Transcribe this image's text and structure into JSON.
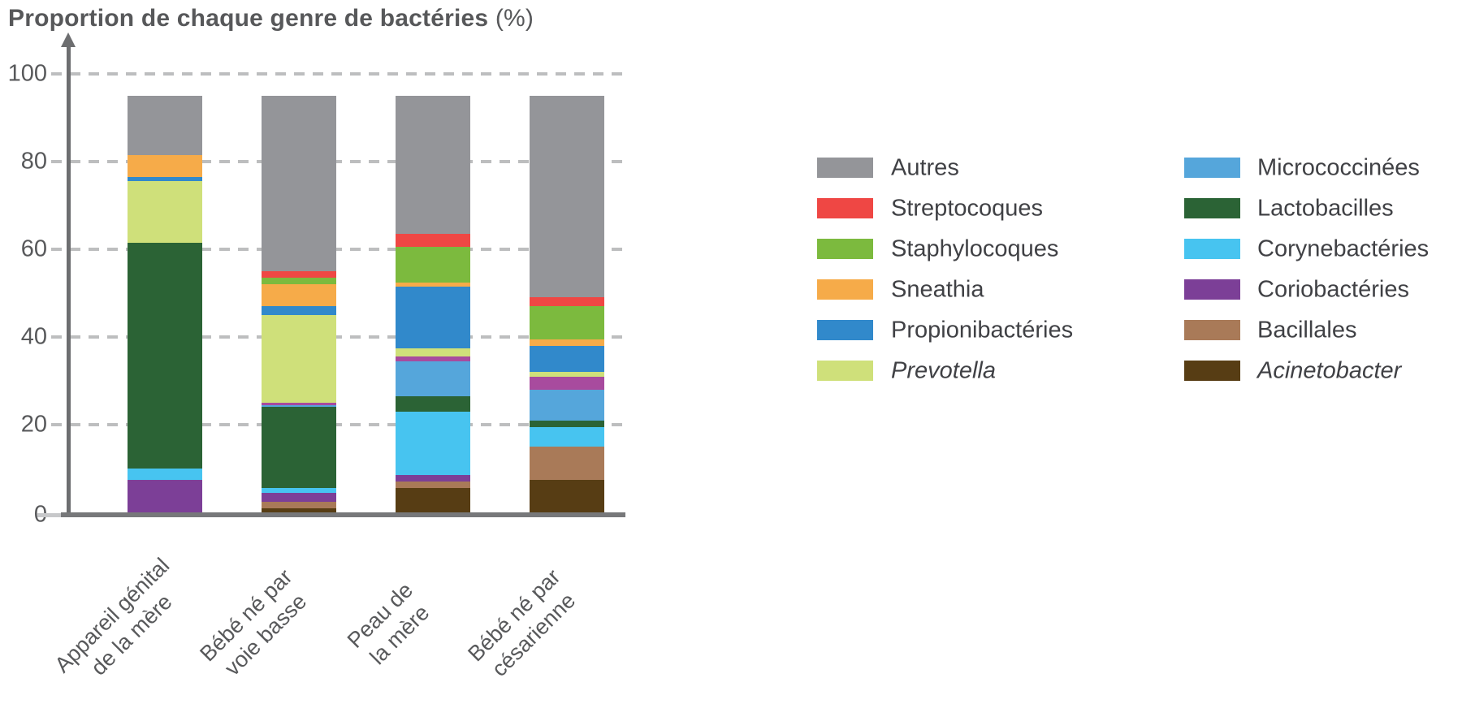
{
  "title": {
    "text": "Proportion de chaque genre de bactéries",
    "suffix": "(%)"
  },
  "chart_data": {
    "type": "stacked-bar",
    "title": "Proportion de chaque genre de bactéries (%)",
    "xlabel": "",
    "ylabel": "Proportion de chaque genre de bactéries (%)",
    "grid": "dashed horizontal lines at 20,40,60,80,100",
    "legend_position": "right, two columns",
    "ylim": [
      0,
      107
    ],
    "y_ticks": [
      "0",
      "20",
      "40",
      "60",
      "80",
      "100"
    ],
    "categories": [
      {
        "lines": [
          "Appareil génital",
          "de la mère"
        ]
      },
      {
        "lines": [
          "Bébé né par",
          "voie basse"
        ]
      },
      {
        "lines": [
          "Peau de",
          "la mère"
        ]
      },
      {
        "lines": [
          "Bébé né par",
          "césarienne"
        ]
      }
    ],
    "stack_order_bottom_to_top": [
      "acinetobacter",
      "bacillales",
      "coriobacteries",
      "corynebacteries",
      "lactobacilles",
      "micrococcinees",
      "non_legende",
      "prevotella",
      "propionibacteries",
      "sneathia",
      "staphylocoques",
      "streptocoques",
      "autres"
    ],
    "series": {
      "autres": {
        "name": "Autres",
        "color": "#949599",
        "italic": false,
        "values": [
          13.5,
          40,
          31.5,
          46
        ]
      },
      "streptocoques": {
        "name": "Streptocoques",
        "color": "#ef4744",
        "italic": false,
        "values": [
          0,
          1.5,
          3,
          2
        ]
      },
      "staphylocoques": {
        "name": "Staphylocoques",
        "color": "#7cba3e",
        "italic": false,
        "values": [
          0,
          1.5,
          8,
          7.5
        ]
      },
      "sneathia": {
        "name": "Sneathia",
        "color": "#f6ab49",
        "italic": false,
        "values": [
          5,
          5,
          1,
          1.5
        ]
      },
      "propionibacteries": {
        "name": "Propionibactéries",
        "color": "#3189cb",
        "italic": false,
        "values": [
          1,
          2,
          14,
          6
        ]
      },
      "prevotella": {
        "name": "Prevotella",
        "color": "#cfe07a",
        "italic": true,
        "values": [
          14,
          20,
          2,
          1
        ]
      },
      "non_legende": {
        "name": "",
        "color": "#a84b9e",
        "italic": false,
        "values": [
          0,
          0.5,
          1,
          3
        ]
      },
      "micrococcinees": {
        "name": "Micrococcinées",
        "color": "#55a6db",
        "italic": false,
        "values": [
          0,
          0.5,
          8,
          7
        ]
      },
      "lactobacilles": {
        "name": "Lactobacilles",
        "color": "#2b6335",
        "italic": false,
        "values": [
          51.5,
          18.5,
          3.5,
          1.5
        ]
      },
      "corynebacteries": {
        "name": "Corynebactéries",
        "color": "#47c4f0",
        "italic": false,
        "values": [
          2.5,
          1,
          14.5,
          4.5
        ]
      },
      "coriobacteries": {
        "name": "Coriobactéries",
        "color": "#7c3f97",
        "italic": false,
        "values": [
          7.5,
          2,
          1.5,
          0
        ]
      },
      "bacillales": {
        "name": "Bacillales",
        "color": "#a97a58",
        "italic": false,
        "values": [
          0,
          1.5,
          1.5,
          7.5
        ]
      },
      "acinetobacter": {
        "name": "Acinetobacter",
        "color": "#573d14",
        "italic": true,
        "values": [
          0,
          1,
          5.5,
          7.5
        ]
      }
    },
    "bar_totals": [
      95,
      95,
      95,
      95
    ]
  },
  "legend": {
    "columns": [
      [
        "autres",
        "streptocoques",
        "staphylocoques",
        "sneathia",
        "propionibacteries",
        "prevotella"
      ],
      [
        "micrococcinees",
        "lactobacilles",
        "corynebacteries",
        "coriobacteries",
        "bacillales",
        "acinetobacter"
      ]
    ]
  }
}
